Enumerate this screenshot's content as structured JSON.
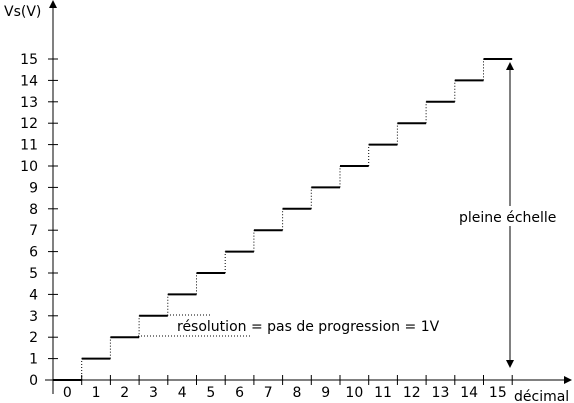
{
  "chart_data": {
    "type": "line",
    "step": true,
    "ylabel": "Vs(V)",
    "xlabel": "décimal",
    "x_ticks": [
      "0",
      "1",
      "2",
      "3",
      "4",
      "5",
      "6",
      "7",
      "8",
      "9",
      "10",
      "11",
      "12",
      "13",
      "14",
      "15"
    ],
    "y_ticks": [
      "0",
      "1",
      "2",
      "3",
      "4",
      "5",
      "6",
      "7",
      "8",
      "9",
      "10",
      "11",
      "12",
      "13",
      "14",
      "15"
    ],
    "xlim": [
      0,
      16
    ],
    "ylim": [
      0,
      15
    ],
    "series": [
      {
        "x": [
          0,
          1,
          2,
          3,
          4,
          5,
          6,
          7,
          8,
          9,
          10,
          11,
          12,
          13,
          14,
          15
        ],
        "y": [
          0,
          1,
          2,
          3,
          4,
          5,
          6,
          7,
          8,
          9,
          10,
          11,
          12,
          13,
          14,
          15
        ]
      }
    ],
    "annotations": {
      "resolution": "résolution = pas de progression = 1V",
      "full_scale": "pleine échelle"
    },
    "grid": false
  }
}
